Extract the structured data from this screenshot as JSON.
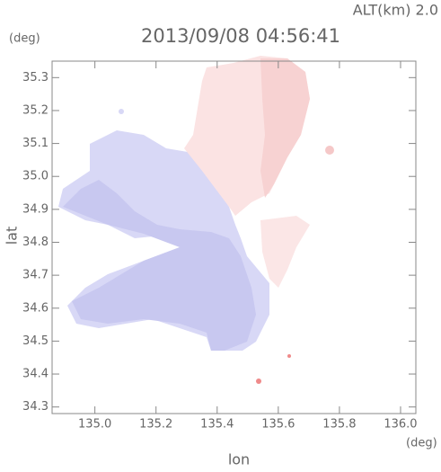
{
  "header": {
    "altitude": "ALT(km) 2.0",
    "timestamp": "2013/09/08 04:56:41"
  },
  "chart_data": {
    "type": "map",
    "y_unit": "(deg)",
    "x_unit": "(deg)",
    "ylabel": "lat",
    "xlabel": "lon",
    "xlim": [
      134.86,
      136.05
    ],
    "xticks": [
      {
        "value": 135.0,
        "label": "135.0"
      },
      135.2,
      135.4,
      135.6,
      135.8,
      {
        "value": 136.0,
        "label": "136.0"
      }
    ],
    "ylim": [
      34.28,
      35.35
    ],
    "yticks": [
      34.3,
      34.4,
      34.5,
      34.6,
      34.7,
      34.8,
      34.9,
      {
        "value": 35.0,
        "label": "35.0"
      },
      35.1,
      35.2,
      35.3
    ]
  }
}
